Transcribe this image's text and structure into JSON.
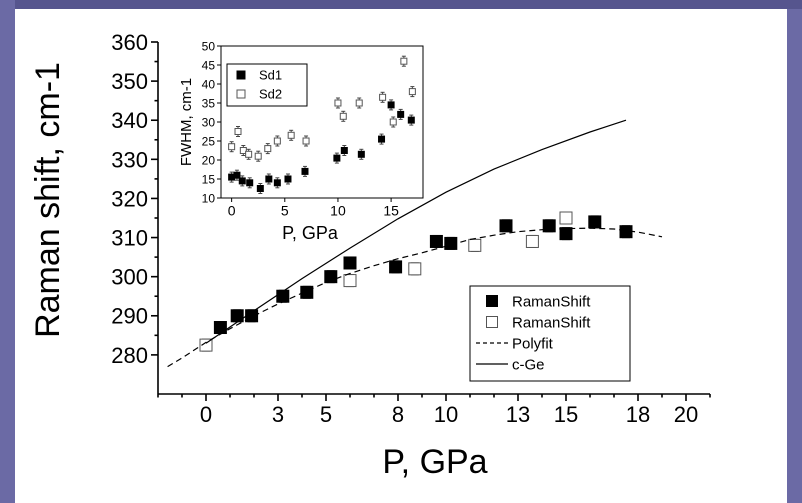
{
  "theme": {
    "frame_color": "#6b6aa5",
    "frame_top_color": "#56558e",
    "background": "#ffffff",
    "ink": "#000000"
  },
  "chart_data": [
    {
      "type": "scatter",
      "title": "",
      "xlabel": "P, GPa",
      "ylabel": "Raman shift, cm-1",
      "xlim": [
        -2,
        21
      ],
      "ylim": [
        270,
        360
      ],
      "xticks": [
        0,
        3,
        5,
        8,
        10,
        13,
        15,
        18,
        20
      ],
      "yticks": [
        280,
        290,
        300,
        310,
        320,
        330,
        340,
        350,
        360
      ],
      "grid": false,
      "legend_position": "bottom-right",
      "legend": [
        {
          "label": "RamanShift",
          "marker": "filled-square"
        },
        {
          "label": "RamanShift",
          "marker": "open-square"
        },
        {
          "label": "Polyfit",
          "line": "dashed"
        },
        {
          "label": "c-Ge",
          "line": "solid"
        }
      ],
      "series": [
        {
          "name": "RamanShift",
          "marker": "filled-square",
          "x": [
            0.6,
            1.3,
            1.9,
            3.2,
            4.2,
            5.2,
            6.0,
            7.9,
            9.6,
            10.2,
            12.5,
            14.3,
            15.0,
            16.2,
            17.5
          ],
          "y": [
            287,
            290,
            290,
            295,
            296,
            300,
            303.5,
            302.5,
            309,
            308.5,
            313,
            313,
            311,
            314,
            311.5
          ]
        },
        {
          "name": "RamanShift",
          "marker": "open-square",
          "x": [
            0.0,
            6.0,
            8.7,
            11.2,
            13.6,
            15.0
          ],
          "y": [
            282.5,
            299,
            302,
            308,
            309,
            315
          ]
        },
        {
          "name": "Polyfit",
          "line": "dashed",
          "x": [
            -1.6,
            -1,
            0,
            1,
            2,
            3,
            4,
            5,
            6,
            7,
            8,
            9,
            10,
            11,
            12,
            13,
            14,
            15,
            16,
            17,
            18,
            19
          ],
          "y": [
            277,
            279.2,
            283.2,
            286.7,
            290.0,
            293.0,
            295.8,
            298.5,
            300.8,
            302.8,
            304.6,
            306.1,
            307.8,
            309.5,
            310.6,
            311.5,
            312.0,
            312.3,
            312.4,
            312.2,
            311.4,
            310.2
          ]
        },
        {
          "name": "c-Ge",
          "line": "solid",
          "x": [
            0,
            2,
            4,
            6,
            8,
            10,
            12,
            14,
            16,
            17.5
          ],
          "y": [
            283,
            291.3,
            299.5,
            307.3,
            314.8,
            321.6,
            327.5,
            332.5,
            337.0,
            340.0
          ]
        }
      ]
    },
    {
      "type": "scatter",
      "title": "",
      "xlabel": "P, GPa",
      "ylabel": "FWHM, cm-1",
      "xlim": [
        -1,
        18
      ],
      "ylim": [
        10,
        50
      ],
      "xticks": [
        0,
        5,
        10,
        15
      ],
      "yticks": [
        10,
        15,
        20,
        25,
        30,
        35,
        40,
        45,
        50
      ],
      "grid": false,
      "legend_position": "top-left",
      "legend": [
        {
          "label": "Sd1",
          "marker": "filled-square"
        },
        {
          "label": "Sd2",
          "marker": "open-square"
        }
      ],
      "series": [
        {
          "name": "Sd1",
          "marker": "filled-square",
          "x": [
            0,
            0.5,
            1,
            1.7,
            2.7,
            3.5,
            4.3,
            5.3,
            6.9,
            9.9,
            10.6,
            12.2,
            14.1,
            15.0,
            15.9,
            16.9
          ],
          "y": [
            15.5,
            16,
            14.5,
            14,
            12.5,
            15,
            14,
            15,
            17,
            20.5,
            22.5,
            21.5,
            25.5,
            34.5,
            32,
            30.5
          ]
        },
        {
          "name": "Sd2",
          "marker": "open-square",
          "x": [
            0,
            0.6,
            1.1,
            1.6,
            2.5,
            3.4,
            4.3,
            5.6,
            7.0,
            10.0,
            10.5,
            12.0,
            14.2,
            15.2,
            16.2,
            17.0
          ],
          "y": [
            23.5,
            27.5,
            22.5,
            21.5,
            21,
            23,
            25,
            26.5,
            25,
            35,
            31.5,
            35,
            36.5,
            30,
            46,
            38
          ]
        }
      ]
    }
  ]
}
